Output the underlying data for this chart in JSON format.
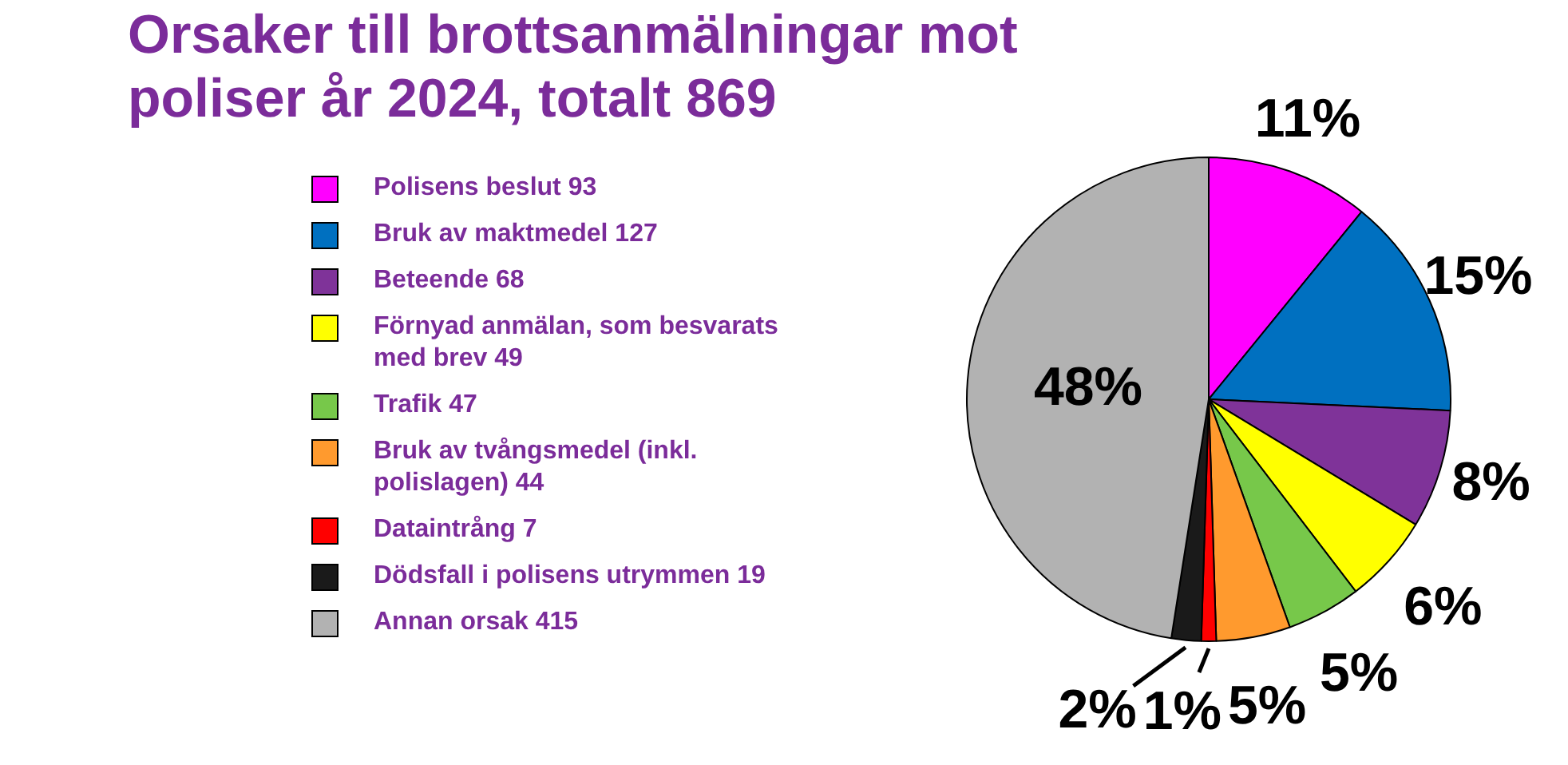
{
  "chart_data": {
    "type": "pie",
    "title": "Orsaker till brottsanmälningar mot poliser år 2024, totalt 869",
    "categories": [
      "Polisens beslut 93",
      "Bruk av maktmedel 127",
      "Beteende 68",
      "Förnyad anmälan, som besvarats med brev 49",
      "Trafik 47",
      "Bruk av tvångsmedel (inkl. polislagen) 44",
      "Dataintrång 7",
      "Dödsfall i polisens utrymmen 19",
      "Annan orsak 415"
    ],
    "values": [
      11,
      15,
      8,
      6,
      5,
      5,
      1,
      2,
      48
    ],
    "colors": [
      "#ff00ff",
      "#0070c0",
      "#7f3399",
      "#ffff00",
      "#77c84a",
      "#ff9a2e",
      "#ff0000",
      "#1a1a1a",
      "#b2b2b2"
    ],
    "value_labels": [
      "11%",
      "15%",
      "8%",
      "6%",
      "5%",
      "5%",
      "1%",
      "2%",
      "48%"
    ],
    "legend": "left"
  }
}
